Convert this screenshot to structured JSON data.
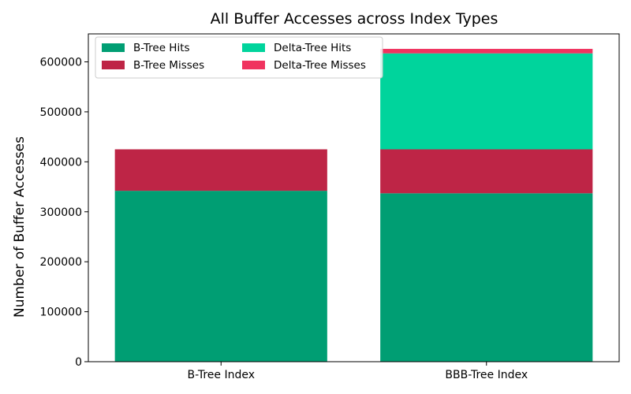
{
  "chart_data": {
    "type": "bar",
    "stacked": true,
    "title": "All Buffer Accesses across Index Types",
    "xlabel": "",
    "ylabel": "Number of Buffer Accesses",
    "categories": [
      "B-Tree Index",
      "BBB-Tree Index"
    ],
    "series": [
      {
        "name": "B-Tree Hits",
        "color": "#009e73",
        "values": [
          342000,
          337000
        ]
      },
      {
        "name": "B-Tree Misses",
        "color": "#be2546",
        "values": [
          83000,
          88000
        ]
      },
      {
        "name": "Delta-Tree Hits",
        "color": "#00d49c",
        "values": [
          0,
          192000
        ]
      },
      {
        "name": "Delta-Tree Misses",
        "color": "#f0335f",
        "values": [
          0,
          9000
        ]
      }
    ],
    "ylim": [
      0,
      656000
    ],
    "yticks": [
      0,
      100000,
      200000,
      300000,
      400000,
      500000,
      600000
    ],
    "grid": false,
    "legend": {
      "position": "top-left",
      "columns": 2
    }
  }
}
